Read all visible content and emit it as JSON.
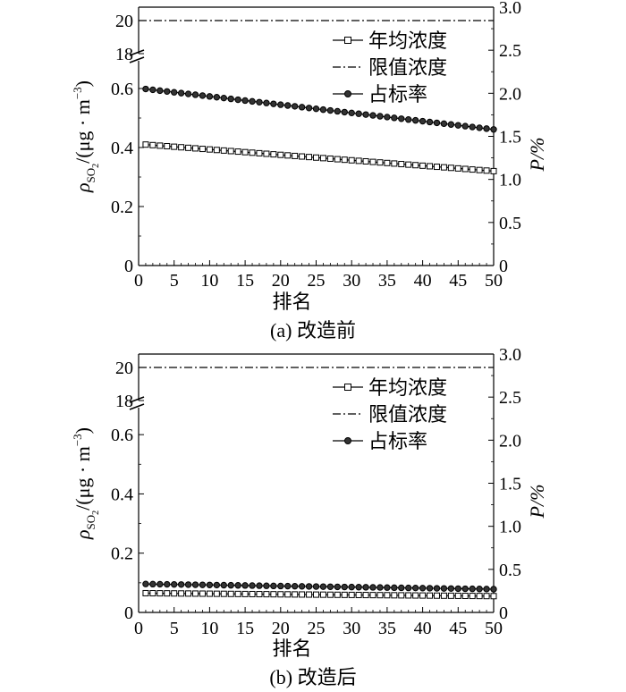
{
  "chart_data": [
    {
      "type": "line",
      "caption": "(a) 改造前",
      "xlabel": "排名",
      "ylabel_left_main": "ρ",
      "ylabel_left_sub": "SO",
      "ylabel_left_subsub": "2",
      "ylabel_left_rest": "/(μg · m",
      "ylabel_left_sup": "−3",
      "ylabel_left_close": ")",
      "ylabel_right": "P/%",
      "x_ticks": [
        "0",
        "5",
        "10",
        "15",
        "20",
        "25",
        "30",
        "35",
        "40",
        "45",
        "50"
      ],
      "y_left_ticks": [
        "0",
        "0.2",
        "0.4",
        "0.6"
      ],
      "y_left_break_ticks": [
        "18",
        "20"
      ],
      "y_right_ticks": [
        "0",
        "0.5",
        "1.0",
        "1.5",
        "2.0",
        "2.5",
        "3.0"
      ],
      "xlim": [
        0,
        50
      ],
      "ylim_left_lower": [
        0,
        0.7
      ],
      "ylim_left_upper": [
        18,
        20.5
      ],
      "ylim_right": [
        0,
        3.0
      ],
      "legend_position": "top-right",
      "series": [
        {
          "name": "年均浓度",
          "axis": "left",
          "marker": "square",
          "start": 0.41,
          "end": 0.32,
          "n": 50
        },
        {
          "name": "限值浓度",
          "axis": "left-upper",
          "style": "dash-dot",
          "value": 20
        },
        {
          "name": "占标率",
          "axis": "right",
          "marker": "circle",
          "start": 2.05,
          "end": 1.58,
          "n": 50
        }
      ]
    },
    {
      "type": "line",
      "caption": "(b) 改造后",
      "xlabel": "排名",
      "ylabel_left_main": "ρ",
      "ylabel_left_sub": "SO",
      "ylabel_left_subsub": "2",
      "ylabel_left_rest": "/(μg · m",
      "ylabel_left_sup": "−3",
      "ylabel_left_close": ")",
      "ylabel_right": "P/%",
      "x_ticks": [
        "0",
        "5",
        "10",
        "15",
        "20",
        "25",
        "30",
        "35",
        "40",
        "45",
        "50"
      ],
      "y_left_ticks": [
        "0",
        "0.2",
        "0.4",
        "0.6"
      ],
      "y_left_break_ticks": [
        "18",
        "20"
      ],
      "y_right_ticks": [
        "0",
        "0.5",
        "1.0",
        "1.5",
        "2.0",
        "2.5",
        "3.0"
      ],
      "xlim": [
        0,
        50
      ],
      "ylim_left_lower": [
        0,
        0.7
      ],
      "ylim_left_upper": [
        18,
        20.5
      ],
      "ylim_right": [
        0,
        3.0
      ],
      "legend_position": "top-right",
      "series": [
        {
          "name": "年均浓度",
          "axis": "left",
          "marker": "square",
          "start": 0.065,
          "end": 0.055,
          "n": 50
        },
        {
          "name": "限值浓度",
          "axis": "left-upper",
          "style": "dash-dot",
          "value": 20
        },
        {
          "name": "占标率",
          "axis": "right",
          "marker": "circle",
          "start": 0.33,
          "end": 0.27,
          "n": 50
        }
      ]
    }
  ]
}
